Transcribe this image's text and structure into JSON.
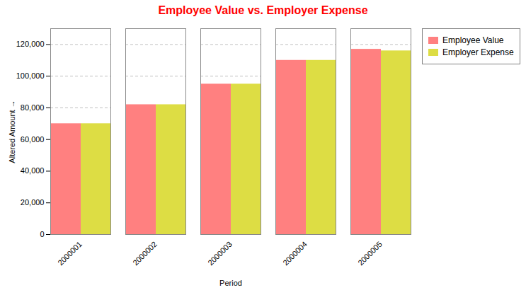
{
  "chart_data": {
    "type": "bar",
    "title": "Employee Value vs. Employer Expense",
    "x_label": "Period",
    "y_label": "Altered Amount",
    "categories": [
      "2000001",
      "2000002",
      "2000003",
      "2000004",
      "2000005"
    ],
    "series": [
      {
        "name": "Employee Value",
        "color": "#FF8080",
        "values": [
          70000,
          82000,
          95000,
          110000,
          117000
        ]
      },
      {
        "name": "Employer Expense",
        "color": "#DDDD44",
        "values": [
          70000,
          82000,
          95000,
          110000,
          116000
        ]
      }
    ],
    "ylim": [
      0,
      130000
    ],
    "yticks": [
      0,
      {
        "value": 20000,
        "label": "20,000"
      },
      {
        "value": 40000,
        "label": "40,000"
      },
      {
        "value": 60000,
        "label": "60,000"
      },
      {
        "value": 80000,
        "label": "80,000"
      },
      {
        "value": 100000,
        "label": "100,000"
      },
      {
        "value": 120000,
        "label": "120,000"
      }
    ],
    "grid": true,
    "legend": "right"
  }
}
